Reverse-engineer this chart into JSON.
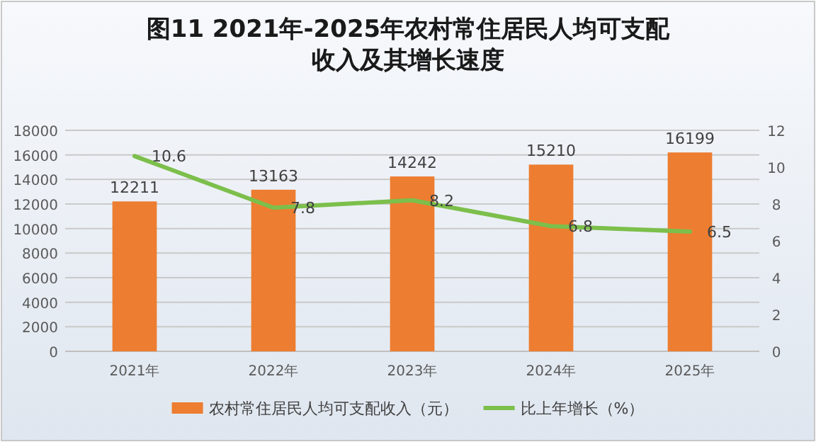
{
  "chart_data": {
    "type": "bar",
    "title": "图11   2021年-2025年农村常住居民人均可支配收入及其增长速度",
    "categories": [
      "2021年",
      "2022年",
      "2023年",
      "2024年",
      "2025年"
    ],
    "series": [
      {
        "name": "农村常住居民人均可支配收入（元）",
        "color": "#ed7d31",
        "values": [
          12211,
          13163,
          14242,
          15210,
          16199
        ]
      },
      {
        "name": "比上年增长（%）",
        "type": "line",
        "axis": "y2",
        "color": "#7cbf4b",
        "values": [
          10.6,
          7.8,
          8.2,
          6.8,
          6.5
        ]
      }
    ],
    "ylim": [
      0,
      18000
    ],
    "yticks": [
      0,
      2000,
      4000,
      6000,
      8000,
      10000,
      12000,
      14000,
      16000,
      18000
    ],
    "y2lim": [
      0,
      12
    ],
    "y2ticks": [
      0,
      2,
      4,
      6,
      8,
      10,
      12
    ],
    "grid": "y",
    "legend": "bottom",
    "data_labels": true,
    "marker": "none",
    "line_style": "solid"
  }
}
